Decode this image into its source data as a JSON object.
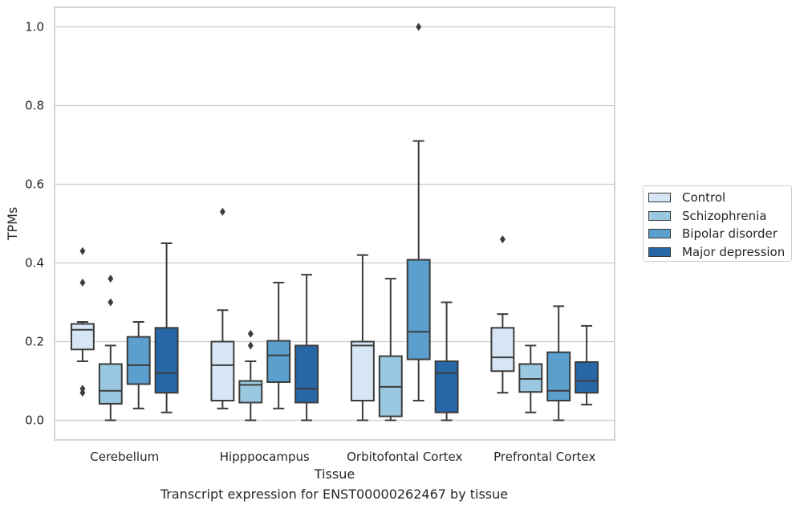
{
  "chart_data": {
    "type": "boxplot",
    "xlabel": "Tissue",
    "ylabel": "TPMs",
    "ylim": [
      -0.05,
      1.05
    ],
    "yticks": [
      0.0,
      0.2,
      0.4,
      0.6,
      0.8,
      1.0
    ],
    "ytick_labels": [
      "0.0",
      "0.2",
      "0.4",
      "0.6",
      "0.8",
      "1.0"
    ],
    "grid": "horizontal",
    "legend_position": "right",
    "categories": [
      "Cerebellum",
      "Hipppocampus",
      "Orbitofontal Cortex",
      "Prefrontal Cortex"
    ],
    "series": [
      {
        "name": "Control",
        "color": "#d6e6f4",
        "boxes": [
          {
            "whislo": 0.15,
            "q1": 0.18,
            "med": 0.23,
            "q3": 0.245,
            "whishi": 0.25,
            "fliers": [
              0.43,
              0.35,
              0.08,
              0.07
            ]
          },
          {
            "whislo": 0.03,
            "q1": 0.05,
            "med": 0.14,
            "q3": 0.2,
            "whishi": 0.28,
            "fliers": [
              0.53
            ]
          },
          {
            "whislo": 0.0,
            "q1": 0.05,
            "med": 0.19,
            "q3": 0.2,
            "whishi": 0.42,
            "fliers": []
          },
          {
            "whislo": 0.07,
            "q1": 0.125,
            "med": 0.16,
            "q3": 0.235,
            "whishi": 0.27,
            "fliers": [
              0.46
            ]
          }
        ]
      },
      {
        "name": "Schizophrenia",
        "color": "#9ac8e0",
        "boxes": [
          {
            "whislo": 0.0,
            "q1": 0.042,
            "med": 0.075,
            "q3": 0.143,
            "whishi": 0.19,
            "fliers": [
              0.36,
              0.3
            ]
          },
          {
            "whislo": 0.0,
            "q1": 0.045,
            "med": 0.09,
            "q3": 0.1,
            "whishi": 0.15,
            "fliers": [
              0.22,
              0.19
            ]
          },
          {
            "whislo": 0.0,
            "q1": 0.01,
            "med": 0.085,
            "q3": 0.163,
            "whishi": 0.36,
            "fliers": []
          },
          {
            "whislo": 0.02,
            "q1": 0.072,
            "med": 0.105,
            "q3": 0.143,
            "whishi": 0.19,
            "fliers": []
          }
        ]
      },
      {
        "name": "Bipolar disorder",
        "color": "#5a9fcd",
        "boxes": [
          {
            "whislo": 0.03,
            "q1": 0.092,
            "med": 0.14,
            "q3": 0.212,
            "whishi": 0.25,
            "fliers": []
          },
          {
            "whislo": 0.03,
            "q1": 0.097,
            "med": 0.165,
            "q3": 0.202,
            "whishi": 0.35,
            "fliers": []
          },
          {
            "whislo": 0.05,
            "q1": 0.155,
            "med": 0.225,
            "q3": 0.408,
            "whishi": 0.71,
            "fliers": [
              1.0
            ]
          },
          {
            "whislo": 0.0,
            "q1": 0.05,
            "med": 0.075,
            "q3": 0.173,
            "whishi": 0.29,
            "fliers": []
          }
        ]
      },
      {
        "name": "Major depression",
        "color": "#2767a8",
        "boxes": [
          {
            "whislo": 0.02,
            "q1": 0.07,
            "med": 0.12,
            "q3": 0.235,
            "whishi": 0.45,
            "fliers": []
          },
          {
            "whislo": 0.0,
            "q1": 0.045,
            "med": 0.08,
            "q3": 0.19,
            "whishi": 0.37,
            "fliers": []
          },
          {
            "whislo": 0.0,
            "q1": 0.02,
            "med": 0.12,
            "q3": 0.15,
            "whishi": 0.3,
            "fliers": []
          },
          {
            "whislo": 0.04,
            "q1": 0.07,
            "med": 0.1,
            "q3": 0.148,
            "whishi": 0.24,
            "fliers": []
          }
        ]
      }
    ]
  },
  "caption": "Transcript expression for ENST00000262467 by tissue"
}
